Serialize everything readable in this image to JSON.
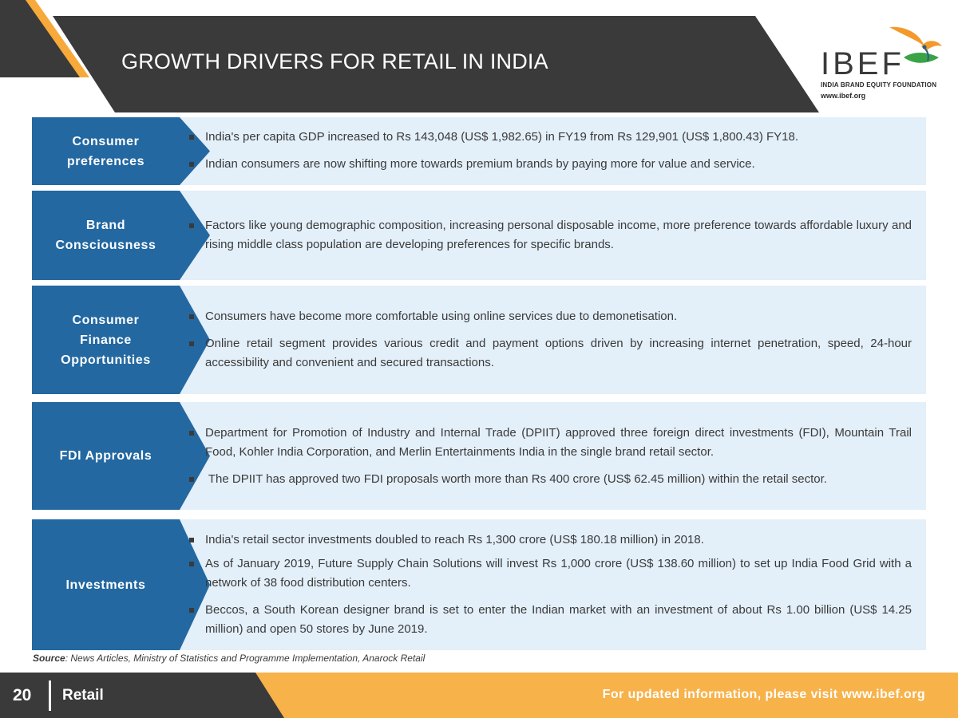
{
  "header": {
    "title": "GROWTH DRIVERS FOR RETAIL IN INDIA",
    "logo_text": "IBEF",
    "logo_subtitle": "INDIA BRAND EQUITY FOUNDATION",
    "logo_url": "www.ibef.org"
  },
  "rows": [
    {
      "label_lines": [
        "Consumer",
        "preferences"
      ],
      "bullets": [
        "India's per capita GDP increased to Rs 143,048 (US$ 1,982.65) in FY19 from Rs 129,901 (US$ 1,800.43) FY18.",
        "Indian consumers are now shifting more towards premium brands by paying more for value and service."
      ]
    },
    {
      "label_lines": [
        "Brand",
        "Consciousness"
      ],
      "bullets": [
        "Factors like young demographic composition, increasing personal disposable income, more preference towards affordable luxury and rising middle class population are developing preferences for specific brands."
      ]
    },
    {
      "label_lines": [
        "Consumer",
        "Finance",
        "Opportunities"
      ],
      "bullets": [
        "Consumers have become more comfortable using online services due to demonetisation.",
        "Online retail segment provides various credit and payment options driven by increasing internet penetration, speed, 24-hour accessibility and convenient and secured transactions."
      ]
    },
    {
      "label_lines": [
        "FDI Approvals"
      ],
      "bullets": [
        "Department for Promotion of Industry and Internal Trade (DPIIT) approved three foreign direct investments (FDI), Mountain Trail Food, Kohler India Corporation, and Merlin Entertainments India in the single brand retail sector.",
        " The DPIIT has approved two FDI proposals worth more than Rs 400 crore (US$ 62.45 million) within the retail sector."
      ]
    },
    {
      "label_lines": [
        "Investments"
      ],
      "bullets": [
        "India's retail sector investments doubled to reach Rs 1,300 crore (US$ 180.18 million) in 2018.",
        "As of January 2019, Future Supply Chain Solutions will invest Rs 1,000 crore (US$ 138.60 million) to set up India Food Grid with a network of 38 food distribution centers.",
        "Beccos, a South Korean designer brand is set to enter the Indian market with an investment of about Rs 1.00 billion (US$ 14.25 million) and open 50 stores by June 2019."
      ]
    }
  ],
  "source": {
    "label": "Source",
    "text": ": News Articles, Ministry of Statistics and Programme Implementation, Anarock Retail"
  },
  "footer": {
    "page_number": "20",
    "section": "Retail",
    "visit_text": "For updated information, please visit www.ibef.org"
  },
  "colors": {
    "dark": "#3a3a3a",
    "orange": "#f7b24a",
    "label_blue": "#2368a1",
    "row_bg": "#e3eff9"
  }
}
